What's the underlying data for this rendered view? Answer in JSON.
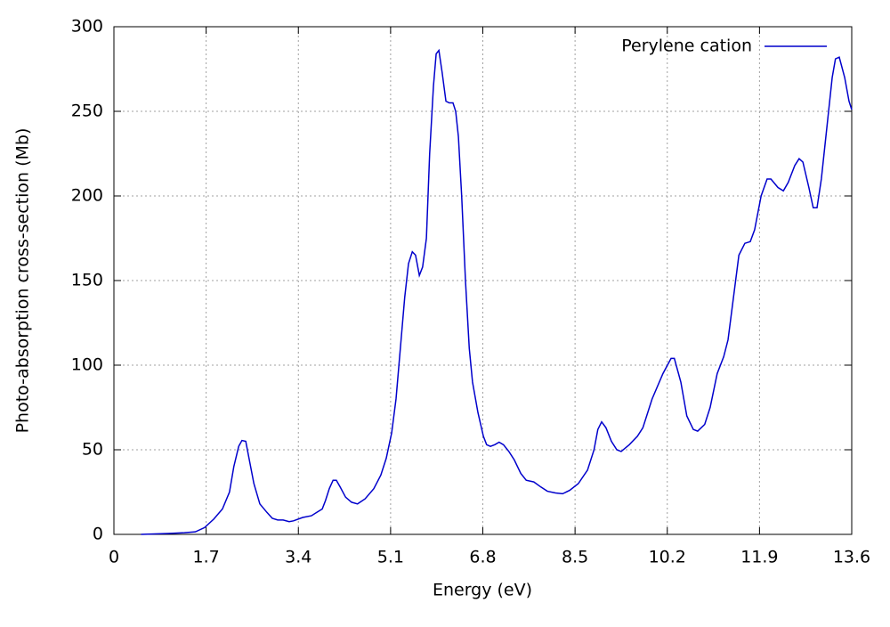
{
  "chart_data": {
    "type": "line",
    "xlabel": "Energy (eV)",
    "ylabel": "Photo-absorption cross-section (Mb)",
    "xlim": [
      0,
      13.6
    ],
    "xticks": [
      0,
      1.7,
      3.4,
      5.1,
      6.8,
      8.5,
      10.2,
      11.9,
      13.6
    ],
    "ylim": [
      0,
      300
    ],
    "yticks": [
      0,
      50,
      100,
      150,
      200,
      250,
      300
    ],
    "grid": true,
    "legend": "upper right",
    "series": [
      {
        "name": "Perylene cation",
        "color": "#0000cc",
        "x": [
          0.5,
          1.0,
          1.3,
          1.5,
          1.67,
          1.84,
          2.0,
          2.13,
          2.21,
          2.3,
          2.36,
          2.43,
          2.49,
          2.58,
          2.69,
          2.82,
          2.92,
          3.02,
          3.12,
          3.23,
          3.31,
          3.48,
          3.64,
          3.74,
          3.84,
          3.9,
          3.97,
          4.04,
          4.1,
          4.17,
          4.27,
          4.38,
          4.49,
          4.63,
          4.79,
          4.92,
          5.02,
          5.12,
          5.2,
          5.28,
          5.36,
          5.43,
          5.5,
          5.56,
          5.63,
          5.69,
          5.76,
          5.82,
          5.89,
          5.94,
          5.99,
          6.05,
          6.12,
          6.18,
          6.25,
          6.3,
          6.35,
          6.41,
          6.48,
          6.55,
          6.61,
          6.71,
          6.81,
          6.87,
          6.94,
          7.02,
          7.1,
          7.18,
          7.28,
          7.38,
          7.5,
          7.6,
          7.74,
          7.87,
          7.99,
          8.14,
          8.27,
          8.4,
          8.56,
          8.73,
          8.85,
          8.92,
          8.99,
          9.07,
          9.17,
          9.27,
          9.35,
          9.5,
          9.65,
          9.75,
          9.92,
          10.12,
          10.27,
          10.33,
          10.45,
          10.56,
          10.68,
          10.76,
          10.89,
          10.99,
          11.12,
          11.24,
          11.32,
          11.42,
          11.52,
          11.63,
          11.73,
          11.81,
          11.93,
          12.04,
          12.11,
          12.24,
          12.34,
          12.43,
          12.55,
          12.63,
          12.7,
          12.81,
          12.89,
          12.96,
          13.04,
          13.14,
          13.24,
          13.3,
          13.37,
          13.47,
          13.55,
          13.6
        ],
        "values": [
          0,
          0.5,
          1,
          1.5,
          4,
          9,
          15,
          25,
          40,
          52,
          55.5,
          55,
          45,
          30,
          18,
          13,
          9.5,
          8.5,
          8.5,
          7.5,
          8,
          10,
          11,
          13,
          15,
          20,
          27,
          32,
          32,
          28,
          22,
          19,
          18,
          21,
          27,
          35,
          45,
          60,
          80,
          110,
          140,
          160,
          167,
          165,
          153,
          158,
          175,
          225,
          265,
          284,
          286,
          273,
          256,
          255,
          255,
          250,
          235,
          200,
          150,
          110,
          90,
          72,
          58,
          53,
          52,
          53,
          54.5,
          53,
          49,
          44,
          36,
          32,
          31,
          28,
          25.5,
          24.5,
          24,
          26,
          30,
          38,
          50,
          62,
          66.5,
          63,
          55,
          50,
          49,
          53,
          58,
          63,
          80,
          95,
          104,
          104,
          90,
          70,
          62,
          61,
          65,
          75,
          95,
          105,
          115,
          140,
          165,
          172,
          173,
          180,
          200,
          210,
          210,
          205,
          203,
          208,
          218,
          222,
          220,
          205,
          193,
          193,
          210,
          240,
          270,
          281,
          282,
          270,
          256,
          251
        ]
      }
    ]
  }
}
